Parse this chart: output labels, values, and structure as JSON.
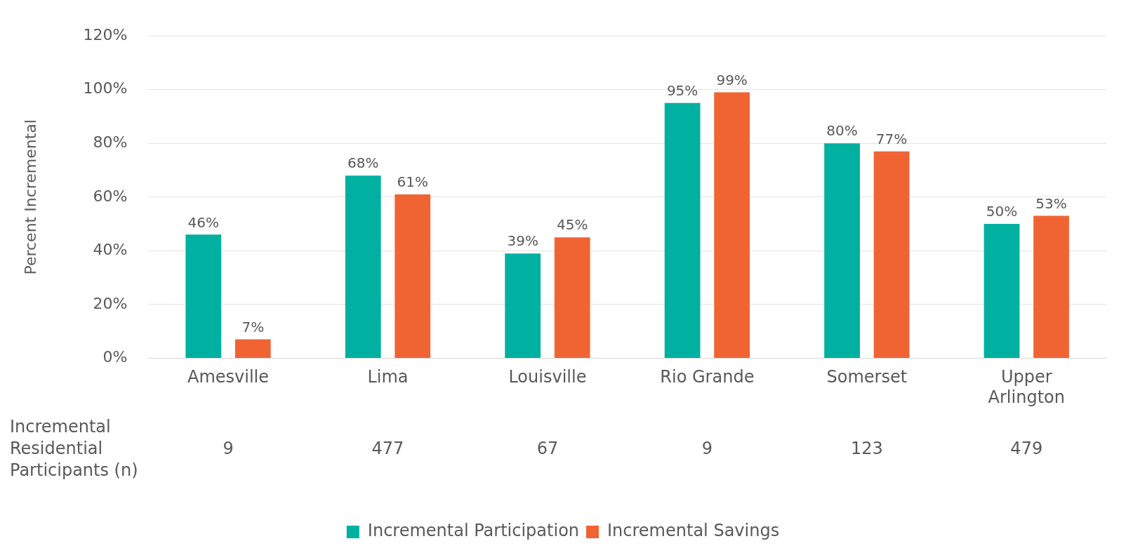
{
  "chart_data": {
    "type": "bar",
    "ylabel": "Percent Incremental",
    "categories": [
      "Amesville",
      "Lima",
      "Louisville",
      "Rio Grande",
      "Somerset",
      "Upper Arlington"
    ],
    "series": [
      {
        "name": "Incremental Participation",
        "color": "#00b0a0",
        "values": [
          46,
          68,
          39,
          95,
          80,
          50
        ],
        "value_labels": [
          "46%",
          "68%",
          "39%",
          "95%",
          "80%",
          "50%"
        ]
      },
      {
        "name": "Incremental Savings",
        "color": "#f06434",
        "values": [
          7,
          61,
          45,
          99,
          77,
          53
        ],
        "value_labels": [
          "7%",
          "61%",
          "45%",
          "99%",
          "77%",
          "53%"
        ]
      }
    ],
    "ylim": [
      0,
      120
    ],
    "yticks": [
      {
        "value": 0,
        "label": "0%"
      },
      {
        "value": 20,
        "label": "20%"
      },
      {
        "value": 40,
        "label": "40%"
      },
      {
        "value": 60,
        "label": "60%"
      },
      {
        "value": 80,
        "label": "80%"
      },
      {
        "value": 100,
        "label": "100%"
      },
      {
        "value": 120,
        "label": "120%"
      }
    ],
    "grid": "y",
    "legend": "bottom",
    "annotations": [
      "Incremental Residential Participants (n)",
      "9",
      "477",
      "67",
      "9",
      "123",
      "479"
    ]
  }
}
